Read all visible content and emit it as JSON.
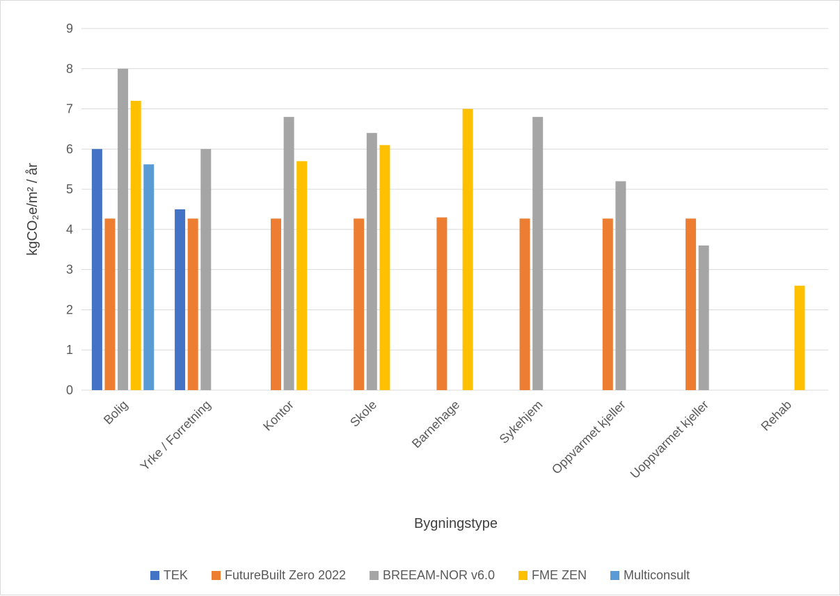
{
  "chart_data": {
    "type": "bar",
    "xlabel": "Bygningstype",
    "ylabel": "kgCO₂e/m² / år",
    "ylim": [
      0,
      9
    ],
    "yticks": [
      "0",
      "1",
      "2",
      "3",
      "4",
      "5",
      "6",
      "7",
      "8",
      "9"
    ],
    "grid": true,
    "legend_position": "bottom",
    "categories": [
      "Bolig",
      "Yrke / Forretning",
      "Kontor",
      "Skole",
      "Barnehage",
      "Sykehjem",
      "Oppvarmet kjeller",
      "Uoppvarmet kjeller",
      "Rehab"
    ],
    "series": [
      {
        "name": "TEK",
        "color": "#4472C4",
        "values": [
          6.0,
          4.5,
          null,
          null,
          null,
          null,
          null,
          null,
          null
        ]
      },
      {
        "name": "FutureBuilt Zero 2022",
        "color": "#ED7D31",
        "values": [
          4.27,
          4.27,
          4.27,
          4.27,
          4.3,
          4.27,
          4.27,
          4.27,
          null
        ]
      },
      {
        "name": "BREEAM-NOR v6.0",
        "color": "#A5A5A5",
        "values": [
          8.0,
          6.0,
          6.8,
          6.4,
          null,
          6.8,
          5.2,
          3.6,
          null
        ]
      },
      {
        "name": "FME ZEN",
        "color": "#FFC000",
        "values": [
          7.2,
          null,
          5.7,
          6.1,
          7.0,
          null,
          null,
          null,
          2.6
        ]
      },
      {
        "name": "Multiconsult",
        "color": "#5B9BD5",
        "values": [
          5.62,
          null,
          null,
          null,
          null,
          null,
          null,
          null,
          null
        ]
      }
    ]
  }
}
